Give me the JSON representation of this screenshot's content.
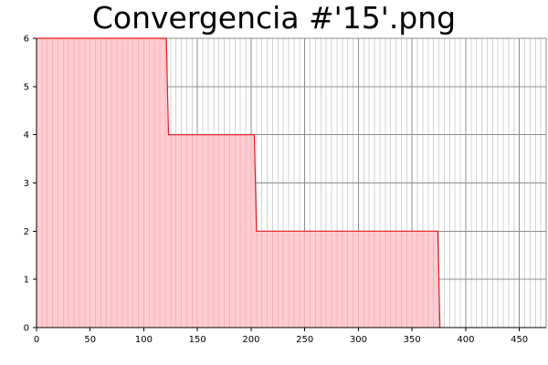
{
  "chart_data": {
    "type": "area",
    "title": "Convergencia #'15'.png",
    "xlabel": "",
    "ylabel": "",
    "xlim": [
      0,
      475
    ],
    "ylim": [
      0,
      6
    ],
    "x_ticks": [
      0,
      50,
      100,
      150,
      200,
      250,
      300,
      350,
      400,
      450
    ],
    "y_ticks": [
      0,
      1,
      2,
      3,
      4,
      5,
      6
    ],
    "grid": true,
    "minor_x_step": 5,
    "series": [
      {
        "x": [
          0,
          121,
          123,
          203,
          205,
          374,
          376
        ],
        "y": [
          6,
          6,
          4,
          4,
          2,
          2,
          0
        ]
      }
    ],
    "colors": {
      "line": "#e8191e",
      "fill": "#ffcdd2",
      "fill_grid": "#f4a0a8",
      "major_grid": "#8c8c8c",
      "minor_grid": "#d4d4d4",
      "axis": "#000000"
    }
  }
}
